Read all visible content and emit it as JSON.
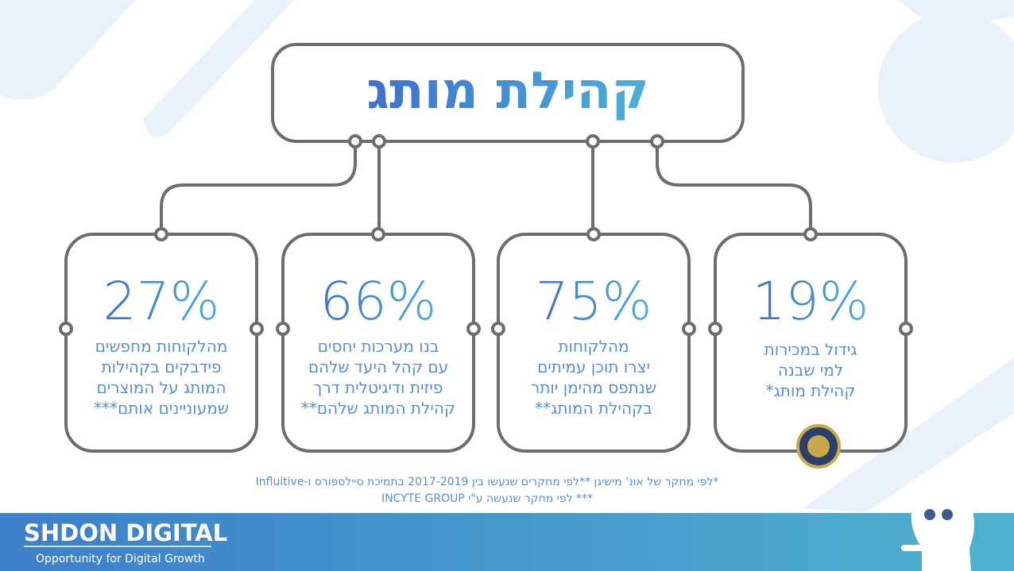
{
  "title": "קהילת מותג",
  "cards": [
    {
      "stat": "27%",
      "lines": [
        "מהלקוחות מחפשים",
        "פידבקים בקהילות",
        "המותג על המוצרים",
        "שמעוניינים אותם***"
      ]
    },
    {
      "stat": "66%",
      "lines": [
        "בנו מערכות יחסים",
        "עם קהל היעד שלהם",
        "פיזית ודיגיטלית דרך",
        "קהילת המותג שלהם**"
      ]
    },
    {
      "stat": "75%",
      "lines": [
        "מהלקוחות",
        "יצרו תוכן עמיתים",
        "שנתפס מהימן יותר",
        "בקהילת המותג**"
      ]
    },
    {
      "stat": "19%",
      "lines": [
        "גידול במכירות",
        "למי שבנה",
        "קהילת מותג*"
      ]
    }
  ],
  "footnotes": [
    "*לפי מחקר של אונ' מישיגן **לפי מחקרים שנעשו בין 2017-2019 בתמיכת סיילספורס ו-Influitive",
    "*** לפי מחקר שנעשה ע\"י INCYTE GROUP"
  ],
  "brand": {
    "name": "SHDON DIGITAL",
    "tagline": "Opportunity for Digital Growth"
  }
}
